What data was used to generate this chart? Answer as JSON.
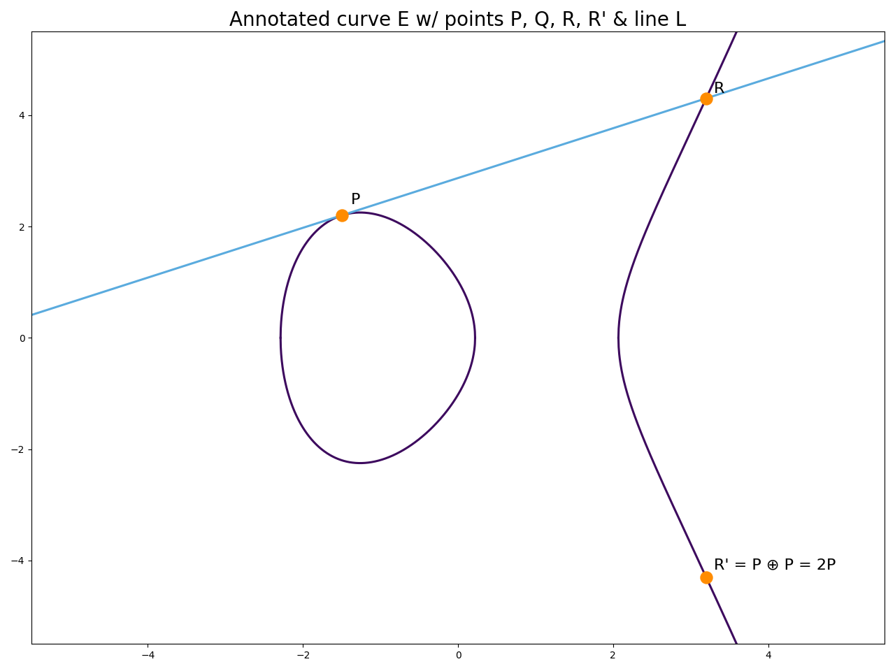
{
  "title": "Annotated curve E w/ points P, Q, R, R' & line L",
  "curve_color": "#3d0a5e",
  "line_color": "#5aabde",
  "point_color": "#ff8c00",
  "point_size": 150,
  "curve_linewidth": 2.2,
  "line_linewidth": 2.2,
  "a": -3,
  "b": 2,
  "xlim": [
    -5.5,
    5.5
  ],
  "ylim": [
    -5.5,
    5.5
  ],
  "label_P": "P",
  "label_R": "R",
  "label_Rprime": "R' = P ⊕ P = 2P",
  "title_fontsize": 20,
  "label_fontsize": 16,
  "figwidth": 12.8,
  "figheight": 9.6,
  "dpi": 100
}
